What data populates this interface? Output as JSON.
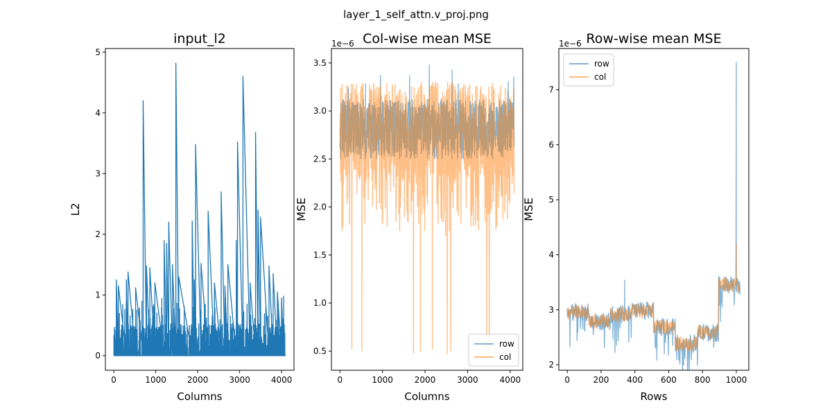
{
  "figure": {
    "suptitle": "layer_1_self_attn.v_proj.png"
  },
  "colors": {
    "row": "#1f77b4",
    "col": "#ff7f0e",
    "l2": "#1f77b4",
    "overlap": "#c49a6c"
  },
  "chart_data": [
    {
      "id": "input_l2",
      "type": "line",
      "title": "input_l2",
      "xlabel": "Columns",
      "ylabel": "L2",
      "xlim": [
        -200,
        4296
      ],
      "ylim": [
        -0.24,
        5.06
      ],
      "xticks": [
        0,
        1000,
        2000,
        3000,
        4000
      ],
      "yticks": [
        0,
        1,
        2,
        3,
        4,
        5
      ],
      "offset_text": "",
      "n_points": 4096,
      "baseline": 0.35,
      "spikes": [
        {
          "x": 60,
          "y": 1.25
        },
        {
          "x": 110,
          "y": 1.15
        },
        {
          "x": 300,
          "y": 1.25
        },
        {
          "x": 340,
          "y": 1.38
        },
        {
          "x": 520,
          "y": 1.12
        },
        {
          "x": 700,
          "y": 4.2
        },
        {
          "x": 780,
          "y": 1.48
        },
        {
          "x": 860,
          "y": 1.45
        },
        {
          "x": 980,
          "y": 1.2
        },
        {
          "x": 1200,
          "y": 1.9
        },
        {
          "x": 1260,
          "y": 1.85
        },
        {
          "x": 1310,
          "y": 2.2
        },
        {
          "x": 1400,
          "y": 1.5
        },
        {
          "x": 1480,
          "y": 4.82
        },
        {
          "x": 1550,
          "y": 1.3
        },
        {
          "x": 1870,
          "y": 2.22
        },
        {
          "x": 1920,
          "y": 1.25
        },
        {
          "x": 1950,
          "y": 3.48
        },
        {
          "x": 2080,
          "y": 1.52
        },
        {
          "x": 2250,
          "y": 2.38
        },
        {
          "x": 2400,
          "y": 1.2
        },
        {
          "x": 2560,
          "y": 2.7
        },
        {
          "x": 2650,
          "y": 1.15
        },
        {
          "x": 2720,
          "y": 1.5
        },
        {
          "x": 2920,
          "y": 1.9
        },
        {
          "x": 2950,
          "y": 3.52
        },
        {
          "x": 3080,
          "y": 4.6
        },
        {
          "x": 3250,
          "y": 1.2
        },
        {
          "x": 3380,
          "y": 3.68
        },
        {
          "x": 3440,
          "y": 2.4
        },
        {
          "x": 3500,
          "y": 2.28
        },
        {
          "x": 3700,
          "y": 1.48
        },
        {
          "x": 3800,
          "y": 1.35
        },
        {
          "x": 3900,
          "y": 1.05
        },
        {
          "x": 4000,
          "y": 0.95
        },
        {
          "x": 4050,
          "y": 0.98
        }
      ]
    },
    {
      "id": "col_mse",
      "type": "line",
      "title": "Col-wise mean MSE",
      "xlabel": "Columns",
      "ylabel": "MSE",
      "xlim": [
        -200,
        4296
      ],
      "ylim": [
        0.3,
        3.65
      ],
      "xticks": [
        0,
        1000,
        2000,
        3000,
        4000
      ],
      "yticks": [
        0.5,
        1.0,
        1.5,
        2.0,
        2.5,
        3.0,
        3.5
      ],
      "ytick_labels": [
        "0.5",
        "1.0",
        "1.5",
        "2.0",
        "2.5",
        "3.0",
        "3.5"
      ],
      "offset_text": "1e−6",
      "n_points": 4096,
      "legend": {
        "position": "lower-right",
        "entries": [
          "row",
          "col"
        ]
      },
      "series": [
        {
          "name": "row",
          "center": 2.82,
          "low": 2.5,
          "high": 3.12,
          "max": 3.49
        },
        {
          "name": "col",
          "center": 2.82,
          "low": 1.75,
          "high": 3.3,
          "max": 3.5,
          "dips": [
            0.52,
            0.5,
            1.85,
            0.48,
            0.5,
            0.52,
            1.7,
            0.47,
            0.5,
            1.8,
            0.48,
            0.45,
            1.6,
            0.5,
            0.53,
            0.55,
            1.9,
            0.7,
            0.5,
            1.75,
            0.48,
            0.5,
            1.7,
            0.52
          ]
        }
      ]
    },
    {
      "id": "row_mse",
      "type": "line",
      "title": "Row-wise mean MSE",
      "xlabel": "Rows",
      "ylabel": "MSE",
      "xlim": [
        -50,
        1074
      ],
      "ylim": [
        1.9,
        7.75
      ],
      "xticks": [
        0,
        200,
        400,
        600,
        800,
        1000
      ],
      "yticks": [
        2,
        3,
        4,
        5,
        6,
        7
      ],
      "offset_text": "1e−6",
      "n_points": 1024,
      "legend": {
        "position": "upper-left",
        "entries": [
          "row",
          "col"
        ]
      },
      "segments": [
        {
          "x0": 0,
          "x1": 128,
          "level": 2.95
        },
        {
          "x0": 128,
          "x1": 256,
          "level": 2.78
        },
        {
          "x0": 256,
          "x1": 384,
          "level": 2.92
        },
        {
          "x0": 384,
          "x1": 512,
          "level": 2.98
        },
        {
          "x0": 512,
          "x1": 640,
          "level": 2.68
        },
        {
          "x0": 640,
          "x1": 768,
          "level": 2.38
        },
        {
          "x0": 768,
          "x1": 896,
          "level": 2.58
        },
        {
          "x0": 896,
          "x1": 1024,
          "level": 3.45
        }
      ],
      "row_spikes": [
        {
          "x": 340,
          "y": 3.54
        },
        {
          "x": 1000,
          "y": 7.5
        }
      ],
      "col_spikes": [
        {
          "x": 1000,
          "y": 4.2
        }
      ]
    }
  ]
}
